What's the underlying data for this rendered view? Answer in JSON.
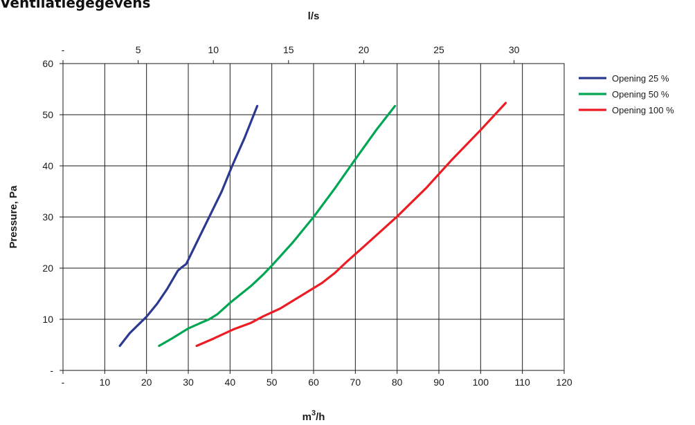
{
  "page": {
    "title": "Ventilatiegegevens"
  },
  "chart_data": {
    "type": "line",
    "title": "",
    "xlabel": "m³/h",
    "x2label": "l/s",
    "ylabel": "Pressure, Pa",
    "xlim": [
      0,
      120
    ],
    "ylim": [
      0,
      60
    ],
    "x2lim": [
      0,
      33.333
    ],
    "xticks": [
      {
        "v": 0,
        "label": "-"
      },
      {
        "v": 10,
        "label": "10"
      },
      {
        "v": 20,
        "label": "20"
      },
      {
        "v": 30,
        "label": "30"
      },
      {
        "v": 40,
        "label": "40"
      },
      {
        "v": 50,
        "label": "50"
      },
      {
        "v": 60,
        "label": "60"
      },
      {
        "v": 70,
        "label": "70"
      },
      {
        "v": 80,
        "label": "80"
      },
      {
        "v": 90,
        "label": "90"
      },
      {
        "v": 100,
        "label": "100"
      },
      {
        "v": 110,
        "label": "110"
      },
      {
        "v": 120,
        "label": "120"
      }
    ],
    "x2ticks": [
      {
        "v": 0,
        "label": "-"
      },
      {
        "v": 5,
        "label": "5"
      },
      {
        "v": 10,
        "label": "10"
      },
      {
        "v": 15,
        "label": "15"
      },
      {
        "v": 20,
        "label": "20"
      },
      {
        "v": 25,
        "label": "25"
      },
      {
        "v": 30,
        "label": "30"
      }
    ],
    "yticks": [
      {
        "v": 0,
        "label": "-"
      },
      {
        "v": 10,
        "label": "10"
      },
      {
        "v": 20,
        "label": "20"
      },
      {
        "v": 30,
        "label": "30"
      },
      {
        "v": 40,
        "label": "40"
      },
      {
        "v": 50,
        "label": "50"
      },
      {
        "v": 60,
        "label": "60"
      }
    ],
    "grid": true,
    "legend_position": "right",
    "series": [
      {
        "name": "Opening 25 %",
        "color": "#2b3990",
        "x": [
          13.6,
          16.0,
          18.5,
          20.0,
          22.5,
          25.0,
          27.5,
          28.5,
          29.5,
          32.0,
          35.0,
          38.0,
          40.5,
          43.5,
          46.5
        ],
        "y": [
          4.8,
          7.3,
          9.3,
          10.5,
          13.0,
          16.0,
          19.5,
          20.2,
          20.8,
          25.0,
          30.0,
          35.0,
          40.0,
          45.5,
          51.7
        ]
      },
      {
        "name": "Opening 50 %",
        "color": "#00a651",
        "x": [
          23.0,
          26.0,
          30.0,
          33.0,
          35.0,
          37.0,
          40.0,
          45.0,
          48.0,
          50.0,
          55.0,
          60.0,
          65.0,
          70.0,
          75.0,
          79.5
        ],
        "y": [
          4.8,
          6.2,
          8.2,
          9.3,
          10.0,
          11.0,
          13.2,
          16.5,
          18.8,
          20.5,
          25.0,
          30.0,
          35.5,
          41.3,
          47.0,
          51.7
        ]
      },
      {
        "name": "Opening 100 %",
        "color": "#ed1c24",
        "x": [
          32.0,
          36.0,
          41.0,
          45.0,
          48.0,
          52.0,
          57.0,
          62.0,
          65.0,
          68.0,
          72.0,
          80.0,
          87.0,
          93.0,
          100.0,
          106.0
        ],
        "y": [
          4.8,
          6.2,
          8.1,
          9.3,
          10.6,
          12.1,
          14.6,
          17.1,
          19.0,
          21.3,
          24.2,
          30.1,
          35.7,
          41.1,
          47.0,
          52.3
        ]
      }
    ]
  }
}
